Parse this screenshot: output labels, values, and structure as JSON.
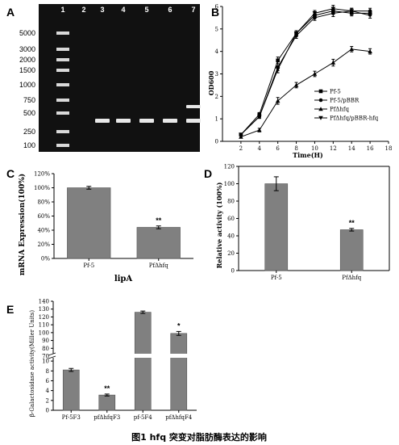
{
  "caption": "图1   hfq 突变对脂肪酶表达的影响",
  "panels": {
    "A": {
      "label": "A",
      "lanes": [
        "1",
        "2",
        "3",
        "4",
        "5",
        "6",
        "7"
      ],
      "marker_sizes": [
        "5000",
        "3000",
        "2000",
        "1500",
        "1000",
        "750",
        "500",
        "250",
        "100"
      ]
    },
    "B": {
      "label": "B"
    },
    "C": {
      "label": "C"
    },
    "D": {
      "label": "D"
    },
    "E": {
      "label": "E"
    }
  },
  "chart_data": [
    {
      "id": "B",
      "type": "line",
      "xlabel": "Time(H)",
      "ylabel": "OD600",
      "xlim": [
        0,
        18
      ],
      "ylim": [
        0,
        6
      ],
      "xticks": [
        2,
        4,
        6,
        8,
        10,
        12,
        14,
        16,
        18
      ],
      "yticks": [
        0,
        1,
        2,
        3,
        4,
        5,
        6
      ],
      "x": [
        2,
        4,
        6,
        8,
        10,
        12,
        14,
        16
      ],
      "legend_position": "right",
      "series": [
        {
          "name": "Pf-5",
          "marker": "square",
          "values": [
            0.3,
            1.2,
            3.6,
            4.8,
            5.6,
            5.8,
            5.7,
            5.7
          ]
        },
        {
          "name": "Pf-5/pBBR",
          "marker": "circle",
          "values": [
            0.3,
            1.1,
            3.3,
            4.7,
            5.5,
            5.7,
            5.8,
            5.8
          ]
        },
        {
          "name": "PfΔhfq",
          "marker": "triangle",
          "values": [
            0.2,
            0.5,
            1.8,
            2.5,
            3.0,
            3.5,
            4.1,
            4.0
          ]
        },
        {
          "name": "PfΔhfq/pBBR-hfq",
          "marker": "triangle-down",
          "values": [
            0.3,
            1.1,
            3.2,
            4.8,
            5.7,
            5.9,
            5.8,
            5.6
          ]
        }
      ]
    },
    {
      "id": "C",
      "type": "bar",
      "title": "",
      "xlabel": "lipA",
      "ylabel": "mRNA Expression(100%)",
      "ylim": [
        0,
        120
      ],
      "yticks": [
        0,
        20,
        40,
        60,
        80,
        100,
        120
      ],
      "ytick_labels": [
        "0%",
        "20%",
        "40%",
        "60%",
        "80%",
        "100%",
        "120%"
      ],
      "categories": [
        "Pf-5",
        "PfΔhfq"
      ],
      "values": [
        100,
        44
      ],
      "errors": [
        2,
        2
      ],
      "annotations": [
        "",
        "**"
      ]
    },
    {
      "id": "D",
      "type": "bar",
      "ylabel": "Relative activity (100%)",
      "ylim": [
        0,
        120
      ],
      "yticks": [
        0,
        20,
        40,
        60,
        80,
        100,
        120
      ],
      "categories": [
        "Pf-5",
        "PfΔhfq"
      ],
      "values": [
        100,
        47
      ],
      "errors": [
        8,
        1.5
      ],
      "annotations": [
        "",
        "**"
      ]
    },
    {
      "id": "E",
      "type": "bar",
      "ylabel": "β-Galactosidase activity(Miller Units)",
      "ylim": [
        0,
        140
      ],
      "axis_break": [
        11,
        70
      ],
      "yticks": [
        0,
        2,
        4,
        6,
        8,
        10,
        70,
        80,
        90,
        100,
        110,
        120,
        130,
        140
      ],
      "categories": [
        "Pf-5F3",
        "pfΔhfqF3",
        "pf-5F4",
        "pfΔhfqF4"
      ],
      "values": [
        8.2,
        3.1,
        126,
        99
      ],
      "errors": [
        0.3,
        0.2,
        1.5,
        2.5
      ],
      "annotations": [
        "",
        "**",
        "",
        "*"
      ]
    }
  ]
}
